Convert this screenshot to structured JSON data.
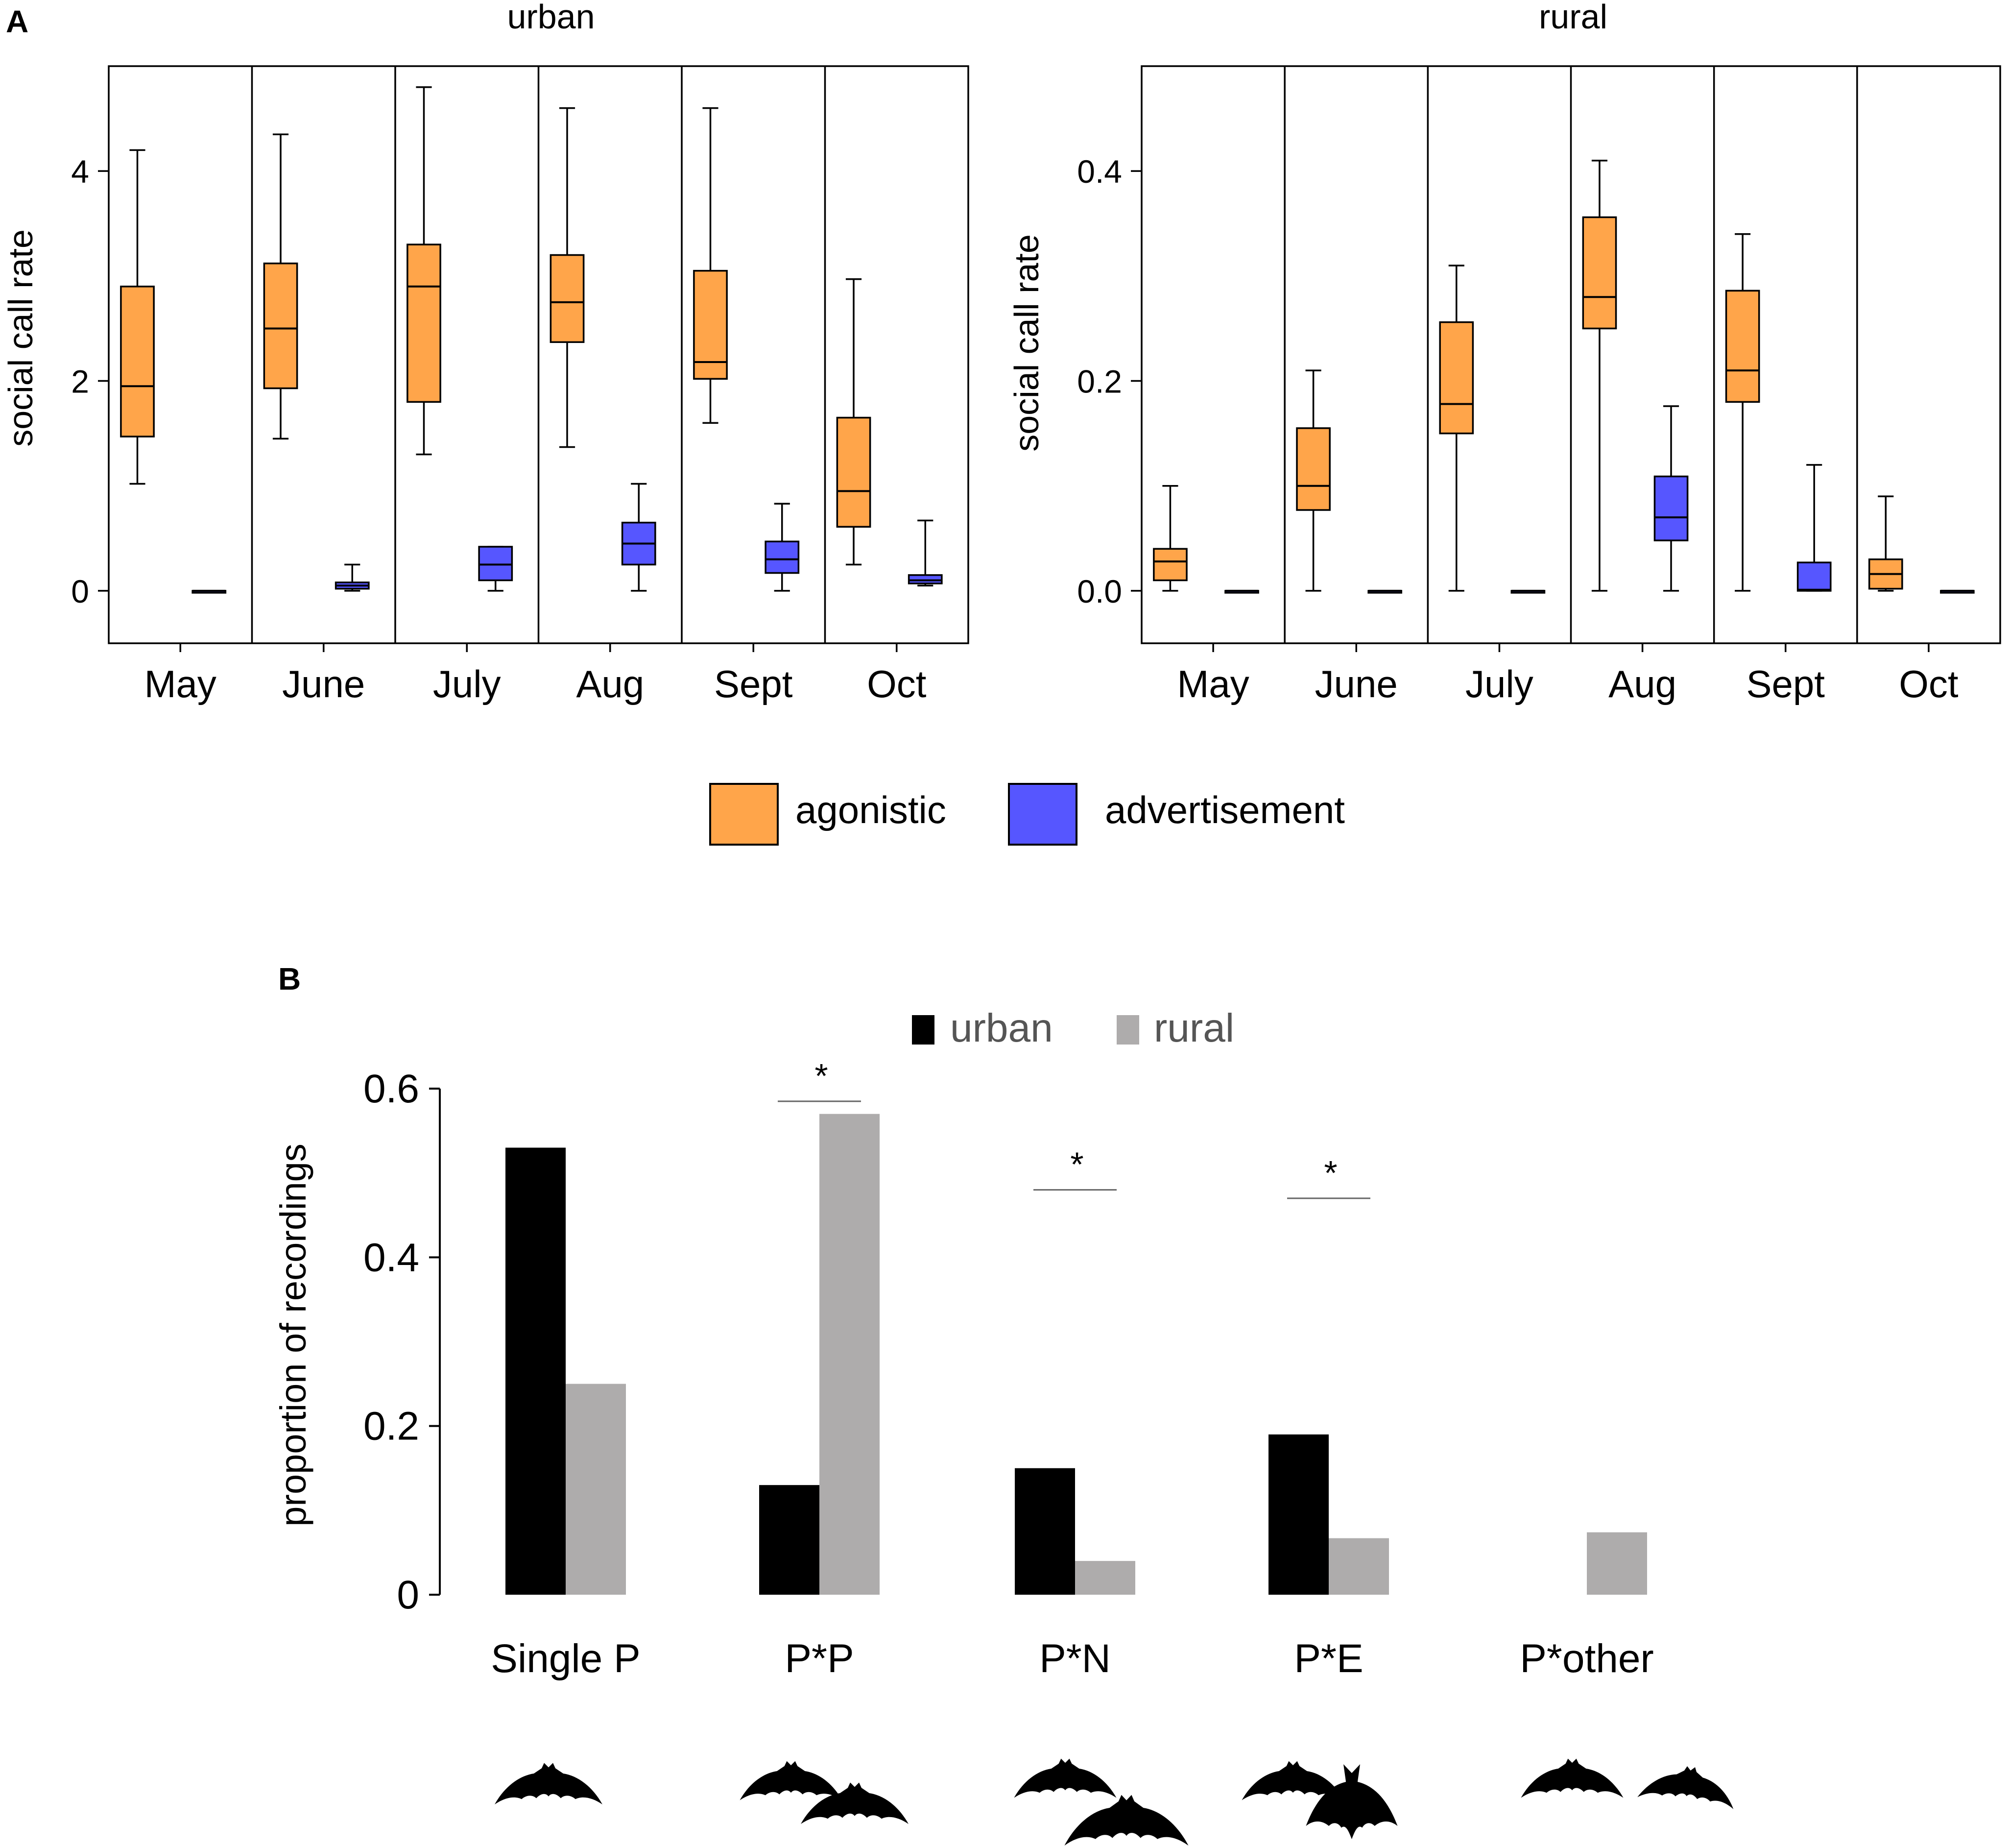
{
  "colors": {
    "agonistic": "#FFA54A",
    "advertisement": "#5656FF",
    "urban": "#000000",
    "rural": "#AEACAC"
  },
  "panel_a": {
    "label": "A",
    "legend": {
      "agonistic": "agonistic",
      "advertisement": "advertisement"
    }
  },
  "panel_b": {
    "label": "B",
    "legend": {
      "urban": "urban",
      "rural": "rural"
    },
    "bat_icons": [
      "bat-single",
      "bat-pair",
      "bat-pair-n",
      "bat-pair-e",
      "bat-pair-other"
    ]
  },
  "chart_data": [
    {
      "type": "boxplot",
      "title": "urban",
      "xlabel": "",
      "ylabel": "social call rate",
      "ylim": [
        -0.5,
        5.0
      ],
      "yticks": [
        0,
        2,
        4
      ],
      "ytick_labels": [
        "0",
        "2",
        "4"
      ],
      "grid": false,
      "categories": [
        "May",
        "June",
        "July",
        "Aug",
        "Sept",
        "Oct"
      ],
      "series": [
        {
          "name": "agonistic",
          "boxes": [
            {
              "whisker_low": 1.02,
              "q1": 1.47,
              "median": 1.95,
              "q3": 2.9,
              "whisker_high": 4.2
            },
            {
              "whisker_low": 1.45,
              "q1": 1.93,
              "median": 2.5,
              "q3": 3.12,
              "whisker_high": 4.35
            },
            {
              "whisker_low": 1.3,
              "q1": 1.8,
              "median": 2.9,
              "q3": 3.3,
              "whisker_high": 4.8
            },
            {
              "whisker_low": 1.37,
              "q1": 2.37,
              "median": 2.75,
              "q3": 3.2,
              "whisker_high": 4.6
            },
            {
              "whisker_low": 1.6,
              "q1": 2.02,
              "median": 2.18,
              "q3": 3.05,
              "whisker_high": 4.6
            },
            {
              "whisker_low": 0.25,
              "q1": 0.61,
              "median": 0.95,
              "q3": 1.65,
              "whisker_high": 2.97
            }
          ]
        },
        {
          "name": "advertisement",
          "boxes": [
            {
              "whisker_low": 0.0,
              "q1": 0.0,
              "median": 0.0,
              "q3": 0.0,
              "whisker_high": 0.0
            },
            {
              "whisker_low": 0.0,
              "q1": 0.02,
              "median": 0.05,
              "q3": 0.08,
              "whisker_high": 0.25
            },
            {
              "whisker_low": 0.0,
              "q1": 0.1,
              "median": 0.25,
              "q3": 0.42,
              "whisker_high": 0.42
            },
            {
              "whisker_low": 0.0,
              "q1": 0.25,
              "median": 0.45,
              "q3": 0.65,
              "whisker_high": 1.02
            },
            {
              "whisker_low": 0.0,
              "q1": 0.17,
              "median": 0.3,
              "q3": 0.47,
              "whisker_high": 0.83
            },
            {
              "whisker_low": 0.05,
              "q1": 0.07,
              "median": 0.1,
              "q3": 0.15,
              "whisker_high": 0.67
            }
          ]
        }
      ]
    },
    {
      "type": "boxplot",
      "title": "rural",
      "xlabel": "",
      "ylabel": "social call rate",
      "ylim": [
        -0.05,
        0.5
      ],
      "yticks": [
        0.0,
        0.2,
        0.4
      ],
      "ytick_labels": [
        "0.0",
        "0.2",
        "0.4"
      ],
      "grid": false,
      "categories": [
        "May",
        "June",
        "July",
        "Aug",
        "Sept",
        "Oct"
      ],
      "series": [
        {
          "name": "agonistic",
          "boxes": [
            {
              "whisker_low": 0.0,
              "q1": 0.01,
              "median": 0.028,
              "q3": 0.04,
              "whisker_high": 0.1
            },
            {
              "whisker_low": 0.0,
              "q1": 0.077,
              "median": 0.1,
              "q3": 0.155,
              "whisker_high": 0.21
            },
            {
              "whisker_low": 0.0,
              "q1": 0.15,
              "median": 0.178,
              "q3": 0.256,
              "whisker_high": 0.31
            },
            {
              "whisker_low": 0.0,
              "q1": 0.25,
              "median": 0.28,
              "q3": 0.356,
              "whisker_high": 0.41
            },
            {
              "whisker_low": 0.0,
              "q1": 0.18,
              "median": 0.21,
              "q3": 0.286,
              "whisker_high": 0.34
            },
            {
              "whisker_low": 0.0,
              "q1": 0.002,
              "median": 0.016,
              "q3": 0.03,
              "whisker_high": 0.09
            }
          ]
        },
        {
          "name": "advertisement",
          "boxes": [
            {
              "whisker_low": 0.0,
              "q1": 0.0,
              "median": 0.0,
              "q3": 0.0,
              "whisker_high": 0.0
            },
            {
              "whisker_low": 0.0,
              "q1": 0.0,
              "median": 0.0,
              "q3": 0.0,
              "whisker_high": 0.0
            },
            {
              "whisker_low": 0.0,
              "q1": 0.0,
              "median": 0.0,
              "q3": 0.0,
              "whisker_high": 0.0
            },
            {
              "whisker_low": 0.0,
              "q1": 0.048,
              "median": 0.07,
              "q3": 0.109,
              "whisker_high": 0.176
            },
            {
              "whisker_low": 0.0,
              "q1": 0.0,
              "median": 0.001,
              "q3": 0.027,
              "whisker_high": 0.12
            },
            {
              "whisker_low": 0.0,
              "q1": 0.0,
              "median": 0.0,
              "q3": 0.0,
              "whisker_high": 0.0
            }
          ]
        }
      ]
    },
    {
      "type": "bar",
      "title": "",
      "xlabel": "",
      "ylabel": "proportion of recordings",
      "ylim": [
        0,
        0.6
      ],
      "yticks": [
        0,
        0.2,
        0.4,
        0.6
      ],
      "ytick_labels": [
        "0",
        "0.2",
        "0.4",
        "0.6"
      ],
      "grid": false,
      "legend_position": "top-center",
      "categories": [
        "Single P",
        "P*P",
        "P*N",
        "P*E",
        "P*other"
      ],
      "series": [
        {
          "name": "urban",
          "values": [
            0.53,
            0.13,
            0.15,
            0.19,
            0.0
          ]
        },
        {
          "name": "rural",
          "values": [
            0.25,
            0.57,
            0.04,
            0.067,
            0.074
          ]
        }
      ],
      "significance": [
        {
          "category": "P*P",
          "label": "*",
          "y": 0.585
        },
        {
          "category": "P*N",
          "label": "*",
          "y": 0.48
        },
        {
          "category": "P*E",
          "label": "*",
          "y": 0.47
        }
      ]
    }
  ]
}
